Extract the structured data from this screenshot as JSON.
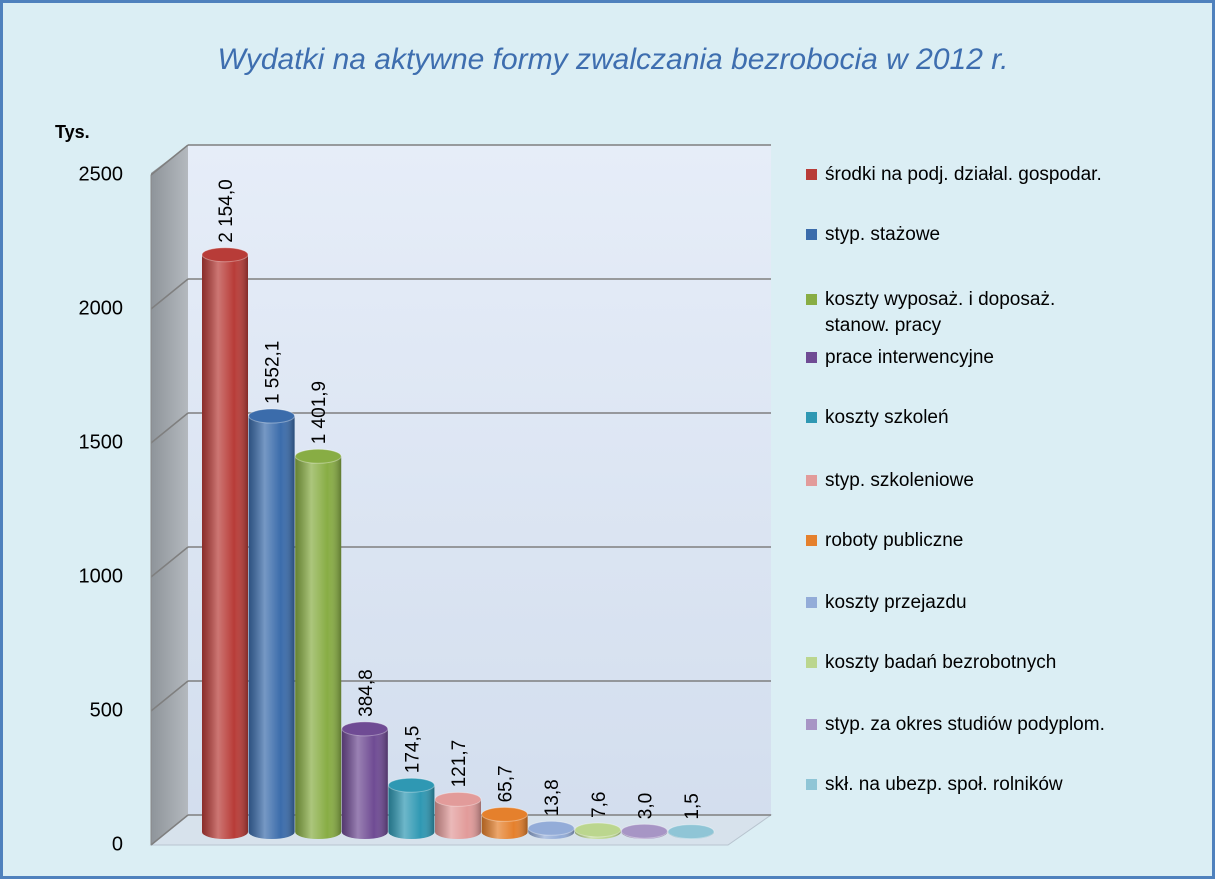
{
  "chart_data": {
    "type": "bar3d",
    "title": "Wydatki na aktywne formy zwalczania bezrobocia w 2012 r.",
    "y_axis_label": "Tys.",
    "categories": [
      "środki na podj. działal. gospodar.",
      "styp. stażowe",
      "koszty wyposaż. i doposaż.\nstanow. pracy",
      "prace interwencyjne",
      "koszty szkoleń",
      "styp. szkoleniowe",
      "roboty publiczne",
      "koszty przejazdu",
      "koszty badań bezrobotnych",
      "styp. za okres studiów podyplom.",
      "skł. na ubezp. społ. rolników"
    ],
    "values": [
      2154.0,
      1552.1,
      1401.9,
      384.8,
      174.5,
      121.7,
      65.7,
      13.8,
      7.6,
      3.0,
      1.5
    ],
    "value_labels": [
      "2 154,0",
      "1 552,1",
      "1 401,9",
      "384,8",
      "174,5",
      "121,7",
      "65,7",
      "13,8",
      "7,6",
      "3,0",
      "1,5"
    ],
    "colors": [
      "#b83c38",
      "#3b6cab",
      "#88ad44",
      "#6f4b94",
      "#2f98b3",
      "#e29b9a",
      "#e5802c",
      "#93acd8",
      "#bbd68e",
      "#a795c5",
      "#8fc5d6"
    ],
    "ylim": [
      0,
      2500
    ],
    "yticks": [
      0,
      500,
      1000,
      1500,
      2000,
      2500
    ],
    "grid": true,
    "legend": "right"
  }
}
